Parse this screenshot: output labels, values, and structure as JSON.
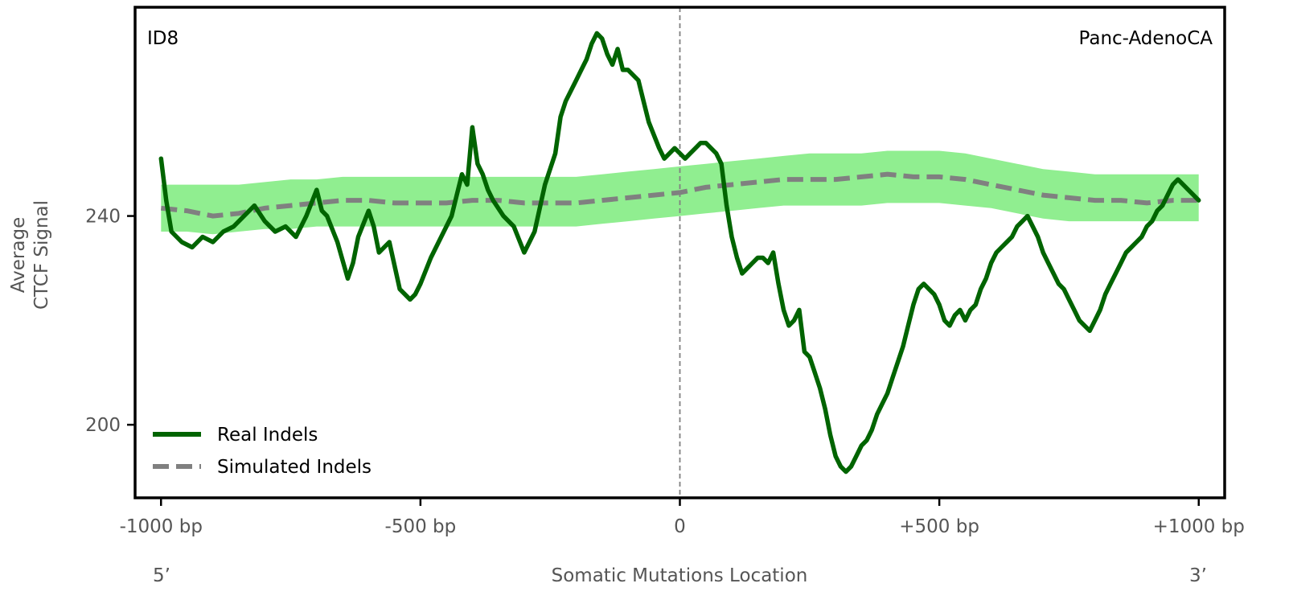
{
  "chart_data": {
    "type": "line",
    "panel_label_left": "ID8",
    "panel_label_right": "Panc-AdenoCA",
    "ylabel_line1": "Average",
    "ylabel_line2": "CTCF Signal",
    "xlabel": "Somatic Mutations Location",
    "end_label_left": "5’",
    "end_label_right": "3’",
    "xlim": [
      -1050,
      1050
    ],
    "ylim": [
      186,
      280
    ],
    "xticks": [
      {
        "value": -1000,
        "label": "-1000 bp"
      },
      {
        "value": -500,
        "label": "-500 bp"
      },
      {
        "value": 0,
        "label": "0"
      },
      {
        "value": 500,
        "label": "+500 bp"
      },
      {
        "value": 1000,
        "label": "+1000 bp"
      }
    ],
    "yticks": [
      {
        "value": 200,
        "label": "200"
      },
      {
        "value": 240,
        "label": "240"
      }
    ],
    "center_line_x": 0,
    "grid": false,
    "legend_position": "lower-left",
    "colors": {
      "real": "#006400",
      "simulated": "#808080",
      "band": "#90ee90",
      "center_line": "#808080"
    },
    "series": [
      {
        "name": "Real Indels",
        "style": "solid",
        "x": [
          -1000,
          -990,
          -980,
          -960,
          -940,
          -920,
          -900,
          -880,
          -860,
          -840,
          -820,
          -800,
          -780,
          -760,
          -740,
          -720,
          -700,
          -690,
          -680,
          -660,
          -640,
          -630,
          -620,
          -600,
          -590,
          -580,
          -560,
          -540,
          -520,
          -510,
          -500,
          -480,
          -460,
          -440,
          -430,
          -420,
          -410,
          -400,
          -390,
          -380,
          -370,
          -360,
          -340,
          -320,
          -300,
          -290,
          -280,
          -260,
          -240,
          -230,
          -220,
          -200,
          -190,
          -180,
          -170,
          -160,
          -150,
          -140,
          -130,
          -120,
          -110,
          -100,
          -80,
          -70,
          -60,
          -40,
          -30,
          -20,
          -10,
          0,
          10,
          20,
          30,
          40,
          50,
          60,
          70,
          80,
          90,
          100,
          110,
          120,
          130,
          140,
          150,
          160,
          170,
          180,
          190,
          200,
          210,
          220,
          230,
          240,
          250,
          260,
          270,
          280,
          290,
          300,
          310,
          320,
          330,
          340,
          350,
          360,
          370,
          380,
          390,
          400,
          410,
          420,
          430,
          440,
          450,
          460,
          470,
          480,
          490,
          500,
          510,
          520,
          530,
          540,
          550,
          560,
          570,
          580,
          590,
          600,
          610,
          620,
          630,
          640,
          650,
          660,
          670,
          680,
          690,
          700,
          710,
          720,
          730,
          740,
          750,
          760,
          770,
          780,
          790,
          800,
          810,
          820,
          830,
          840,
          850,
          860,
          870,
          880,
          890,
          900,
          910,
          920,
          930,
          940,
          950,
          960,
          970,
          980,
          990,
          1000
        ],
        "values": [
          251,
          243,
          237,
          235,
          234,
          236,
          235,
          237,
          238,
          240,
          242,
          239,
          237,
          238,
          236,
          240,
          245,
          241,
          240,
          235,
          228,
          231,
          236,
          241,
          238,
          233,
          235,
          226,
          224,
          225,
          227,
          232,
          236,
          240,
          244,
          248,
          246,
          257,
          250,
          248,
          245,
          243,
          240,
          238,
          233,
          235,
          237,
          246,
          252,
          259,
          262,
          266,
          268,
          270,
          273,
          275,
          274,
          271,
          269,
          272,
          268,
          268,
          266,
          262,
          258,
          253,
          251,
          252,
          253,
          252,
          251,
          252,
          253,
          254,
          254,
          253,
          252,
          250,
          242,
          236,
          232,
          229,
          230,
          231,
          232,
          232,
          231,
          233,
          227,
          222,
          219,
          220,
          222,
          214,
          213,
          210,
          207,
          203,
          198,
          194,
          192,
          191,
          192,
          194,
          196,
          197,
          199,
          202,
          204,
          206,
          209,
          212,
          215,
          219,
          223,
          226,
          227,
          226,
          225,
          223,
          220,
          219,
          221,
          222,
          220,
          222,
          223,
          226,
          228,
          231,
          233,
          234,
          235,
          236,
          238,
          239,
          240,
          238,
          236,
          233,
          231,
          229,
          227,
          226,
          224,
          222,
          220,
          219,
          218,
          220,
          222,
          225,
          227,
          229,
          231,
          233,
          234,
          235,
          236,
          238,
          239,
          241,
          242,
          244,
          246,
          247,
          246,
          245,
          244,
          243
        ]
      },
      {
        "name": "Simulated Indels",
        "style": "dashed",
        "x": [
          -1000,
          -950,
          -900,
          -850,
          -800,
          -750,
          -700,
          -650,
          -600,
          -550,
          -500,
          -450,
          -400,
          -350,
          -300,
          -250,
          -200,
          -150,
          -100,
          -50,
          0,
          50,
          100,
          150,
          200,
          250,
          300,
          350,
          400,
          450,
          500,
          550,
          600,
          650,
          700,
          750,
          800,
          850,
          900,
          950,
          1000
        ],
        "values": [
          241.5,
          241,
          240,
          240.5,
          241.5,
          242,
          242.5,
          243,
          243,
          242.5,
          242.5,
          242.5,
          243,
          243,
          242.5,
          242.5,
          242.5,
          243,
          243.5,
          244,
          244.5,
          245.5,
          246,
          246.5,
          247,
          247,
          247,
          247.5,
          248,
          247.5,
          247.5,
          247,
          246,
          245,
          244,
          243.5,
          243,
          243,
          242.5,
          243,
          243
        ],
        "band_lower": [
          237,
          237,
          236.5,
          237,
          237.5,
          237.5,
          238,
          238,
          238,
          238,
          238,
          238,
          238,
          238,
          238,
          238,
          238,
          238.5,
          239,
          239.5,
          240,
          240.5,
          241,
          241.5,
          242,
          242,
          242,
          242,
          242.5,
          242.5,
          242.5,
          242,
          241.5,
          240.5,
          239.5,
          239,
          239,
          239,
          239,
          239,
          239
        ],
        "band_upper": [
          246,
          246,
          246,
          246,
          246.5,
          247,
          247,
          247.5,
          247.5,
          247.5,
          247.5,
          247.5,
          247.5,
          247.5,
          247.5,
          247.5,
          247.5,
          248,
          248.5,
          249,
          249.5,
          250,
          250.5,
          251,
          251.5,
          252,
          252,
          252,
          252.5,
          252.5,
          252.5,
          252,
          251,
          250,
          249,
          248.5,
          248,
          248,
          248,
          248,
          248
        ]
      }
    ]
  }
}
